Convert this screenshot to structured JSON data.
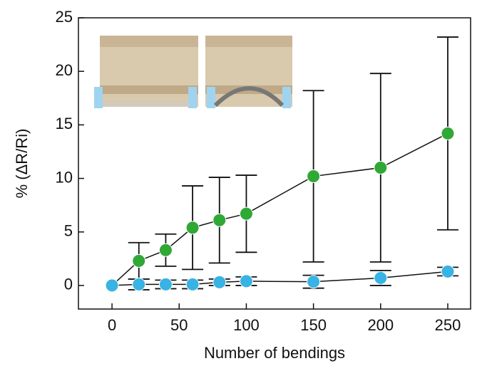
{
  "chart_data": {
    "type": "scatter",
    "x_label": "Number of bendings",
    "y_label": "% (ΔR/Ri)",
    "x": [
      0,
      20,
      40,
      60,
      80,
      100,
      150,
      200,
      250
    ],
    "series": [
      {
        "color": "#2fa836",
        "values": [
          0,
          2.3,
          3.3,
          5.4,
          6.1,
          6.7,
          10.2,
          11.0,
          14.2
        ],
        "errors": [
          null,
          1.7,
          1.5,
          3.9,
          4.0,
          3.6,
          8.0,
          8.8,
          9.0
        ]
      },
      {
        "color": "#38b3e3",
        "values": [
          0,
          0.1,
          0.1,
          0.1,
          0.3,
          0.4,
          0.35,
          0.7,
          1.3
        ],
        "errors": [
          null,
          0.5,
          0.4,
          0.4,
          0.3,
          0.4,
          0.6,
          0.7,
          0.4
        ]
      }
    ],
    "xlim": [
      -25,
      267
    ],
    "ylim": [
      -2.2,
      25
    ],
    "xticks": [
      0,
      50,
      100,
      150,
      200,
      250
    ],
    "yticks": [
      0,
      5,
      10,
      15,
      20,
      25
    ]
  }
}
